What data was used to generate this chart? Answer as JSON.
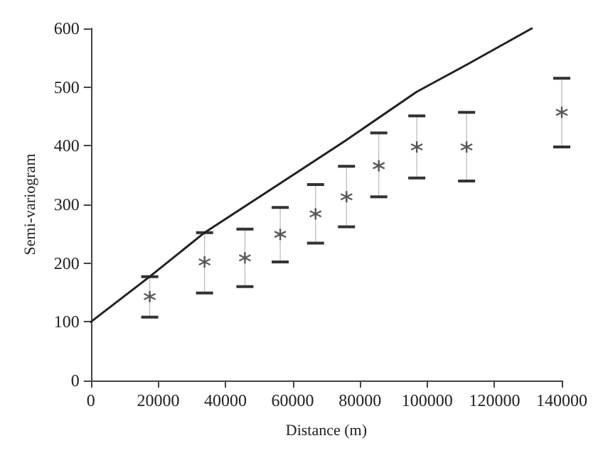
{
  "chart_data": {
    "type": "scatter",
    "xlabel": "Distance (m)",
    "ylabel": "Semi-variogram",
    "xlim": [
      0,
      140000
    ],
    "ylim": [
      0,
      600
    ],
    "xticks": [
      0,
      20000,
      40000,
      60000,
      80000,
      100000,
      120000,
      140000
    ],
    "yticks": [
      0,
      100,
      200,
      300,
      400,
      500,
      600
    ],
    "grid": false,
    "series": [
      {
        "color": "#333333",
        "marker": "cross",
        "x": [
          17500,
          33800,
          45800,
          56300,
          66800,
          76000,
          85600,
          96900,
          111700,
          140000
        ],
        "values": [
          143,
          202,
          209,
          249,
          284,
          313,
          366,
          398,
          398,
          457
        ],
        "errors": [
          [
            108,
            177
          ],
          [
            149,
            252
          ],
          [
            160,
            258
          ],
          [
            202,
            295
          ],
          [
            234,
            334
          ],
          [
            262,
            365
          ],
          [
            313,
            422
          ],
          [
            345,
            451
          ],
          [
            340,
            457
          ],
          [
            398,
            515
          ]
        ]
      },
      {
        "type": "line",
        "color": "#222222",
        "marker": "none",
        "line_style": "solid",
        "x": [
          0,
          17500,
          33800,
          56300,
          75500,
          96900,
          111700,
          131100
        ],
        "values": [
          100,
          177,
          252,
          336,
          408,
          492,
          538,
          600
        ]
      }
    ]
  }
}
